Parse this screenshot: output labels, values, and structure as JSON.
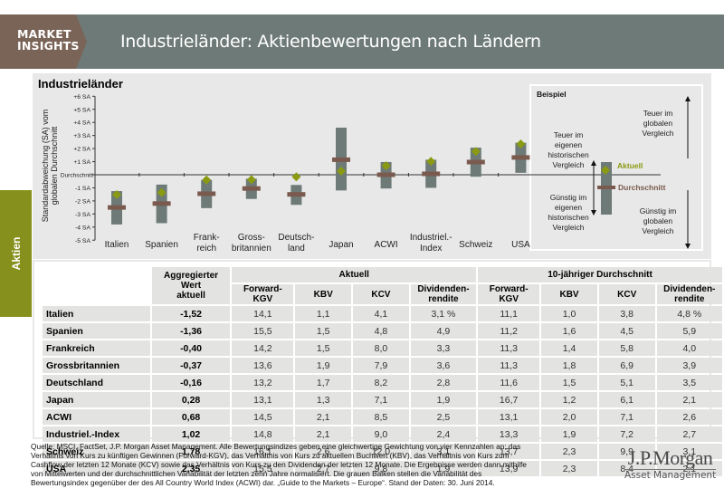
{
  "header": {
    "brand_line1": "MARKET",
    "brand_line2": "INSIGHTS",
    "title": "Industrieländer: Aktienbewertungen nach Ländern"
  },
  "side_tab": {
    "label": "Aktien"
  },
  "colors": {
    "header_bg": "#6e7a77",
    "brand_bg": "#7a6357",
    "side_tab": "#86901c",
    "range_bar": "#6d7a77",
    "average_marker": "#7a5a4e",
    "current_marker": "#8a9a12"
  },
  "chart_data": {
    "type": "range-marker",
    "title": "Industrieländer",
    "ylabel": "Standardabweichung (SA) vom globalen Durchschnitt",
    "ylim": [
      -5,
      6
    ],
    "yticks": [
      {
        "value": 6,
        "label": "+6 SA"
      },
      {
        "value": 5,
        "label": "+5 SA"
      },
      {
        "value": 4,
        "label": "+4 SA"
      },
      {
        "value": 3,
        "label": "+3 SA"
      },
      {
        "value": 2,
        "label": "+2 SA"
      },
      {
        "value": 1,
        "label": "+1 SA"
      },
      {
        "value": 0,
        "label": "Durchschnitt"
      },
      {
        "value": -1,
        "label": "-1 SA"
      },
      {
        "value": -2,
        "label": "-2 SA"
      },
      {
        "value": -3,
        "label": "-3 SA"
      },
      {
        "value": -4,
        "label": "-4 SA"
      },
      {
        "value": -5,
        "label": "-5 SA"
      }
    ],
    "categories": [
      {
        "l1": "Italien",
        "l2": ""
      },
      {
        "l1": "Spanien",
        "l2": ""
      },
      {
        "l1": "Frank-",
        "l2": "reich"
      },
      {
        "l1": "Gross-",
        "l2": "britannien"
      },
      {
        "l1": "Deutsch-",
        "l2": "land"
      },
      {
        "l1": "Japan",
        "l2": ""
      },
      {
        "l1": "ACWI",
        "l2": ""
      },
      {
        "l1": "Industriel.-",
        "l2": "Index"
      },
      {
        "l1": "Schweiz",
        "l2": ""
      },
      {
        "l1": "USA",
        "l2": ""
      }
    ],
    "series": [
      {
        "name": "Range (low)",
        "values": [
          -3.8,
          -3.7,
          -2.55,
          -1.85,
          -2.3,
          -1.2,
          -1.05,
          -1.0,
          -0.15,
          0.15
        ]
      },
      {
        "name": "Range (high)",
        "values": [
          -1.25,
          -0.75,
          -0.4,
          -0.3,
          -0.78,
          3.6,
          0.97,
          1.15,
          2.07,
          2.45
        ]
      },
      {
        "name": "Durchschnitt",
        "values": [
          -2.5,
          -2.2,
          -1.45,
          -1.05,
          -1.5,
          1.15,
          0.0,
          0.07,
          0.97,
          1.32
        ]
      },
      {
        "name": "Aktuell",
        "values": [
          -1.52,
          -1.36,
          -0.4,
          -0.37,
          -0.16,
          0.28,
          0.68,
          1.02,
          1.78,
          2.35
        ]
      }
    ],
    "legend_example": {
      "title": "Beispiel",
      "expensive_global": [
        "Teuer im",
        "globalen",
        "Vergleich"
      ],
      "expensive_hist": [
        "Teuer im",
        "eigenen",
        "historischen",
        "Vergleich"
      ],
      "cheap_hist": [
        "Günstig im",
        "eigenen",
        "historischen",
        "Vergleich"
      ],
      "cheap_global": [
        "Günstig im",
        "globalen",
        "Vergleich"
      ],
      "current_label": "Aktuell",
      "average_label": "Durchschnitt"
    }
  },
  "table": {
    "agg_header_l1": "Aggregierter Wert",
    "agg_header_l2": "aktuell",
    "group_current": "Aktuell",
    "group_avg": "10-jähriger Durchschnitt",
    "cols": [
      {
        "l1": "Forward-KGV",
        "l2": ""
      },
      {
        "l1": "KBV",
        "l2": ""
      },
      {
        "l1": "KCV",
        "l2": ""
      },
      {
        "l1": "Dividenden-",
        "l2": "rendite"
      },
      {
        "l1": "Forward-KGV",
        "l2": ""
      },
      {
        "l1": "KBV",
        "l2": ""
      },
      {
        "l1": "KCV",
        "l2": ""
      },
      {
        "l1": "Dividenden-",
        "l2": "rendite"
      }
    ],
    "rows": [
      {
        "country": "Italien",
        "agg": "-1,52",
        "vals": [
          "14,1",
          "1,1",
          "4,1",
          "3,1 %",
          "11,1",
          "1,0",
          "3,8",
          "4,8 %"
        ]
      },
      {
        "country": "Spanien",
        "agg": "-1,36",
        "vals": [
          "15,5",
          "1,5",
          "4,8",
          "4,9",
          "11,2",
          "1,6",
          "4,5",
          "5,9"
        ]
      },
      {
        "country": "Frankreich",
        "agg": "-0,40",
        "vals": [
          "14,2",
          "1,5",
          "8,0",
          "3,3",
          "11,3",
          "1,4",
          "5,8",
          "4,0"
        ]
      },
      {
        "country": "Grossbritannien",
        "agg": "-0,37",
        "vals": [
          "13,6",
          "1,9",
          "7,9",
          "3,6",
          "11,3",
          "1,8",
          "6,9",
          "3,9"
        ]
      },
      {
        "country": "Deutschland",
        "agg": "-0,16",
        "vals": [
          "13,2",
          "1,7",
          "8,2",
          "2,8",
          "11,6",
          "1,5",
          "5,1",
          "3,5"
        ]
      },
      {
        "country": "Japan",
        "agg": "0,28",
        "vals": [
          "13,1",
          "1,3",
          "7,1",
          "1,9",
          "16,7",
          "1,2",
          "6,1",
          "2,1"
        ]
      },
      {
        "country": "ACWI",
        "agg": "0,68",
        "vals": [
          "14,5",
          "2,1",
          "8,5",
          "2,5",
          "13,1",
          "2,0",
          "7,1",
          "2,6"
        ]
      },
      {
        "country": "Industriel.-Index",
        "agg": "1,02",
        "vals": [
          "14,8",
          "2,1",
          "9,0",
          "2,4",
          "13,3",
          "1,9",
          "7,2",
          "2,7"
        ]
      },
      {
        "country": "Schweiz",
        "agg": "1,78",
        "vals": [
          "16,1",
          "2,6",
          "12,0",
          "3,1",
          "13,7",
          "2,3",
          "9,9",
          "3,1"
        ]
      },
      {
        "country": "USA",
        "agg": "2,35",
        "vals": [
          "15,5",
          "2,7",
          "9,8",
          "1,9",
          "13,9",
          "2,3",
          "8,4",
          "2,1"
        ]
      }
    ]
  },
  "footnote": "Quelle: MSCI, FactSet, J.P. Morgan Asset Management. Alle Bewertungsindizes geben eine gleichwertige Gewichtung von vier Kennzahlen an: das Verhältnis von Kurs zu künftigen Gewinnen (Forward-KGV), das Verhältnis von Kurs zu aktuellem Buchwert (KBV), das Verhältnis von Kurs zum Cashflow der letzten 12 Monate (KCV) sowie das Verhältnis von Kurs zu den Dividenden der letzten 12 Monate. Die Ergebnisse werden dann mithilfe von Mittelwerten und der durchschnittlichen Variabilität der letzten zehn Jahre normalisiert. Die grauen Balken stellen die Variabilität des Bewertungsindex gegenüber der des All Country World Index (ACWI) dar. „Guide to the Markets – Europe“. Stand der Daten: 30. Juni 2014.",
  "logo": {
    "name": "J.P.Morgan",
    "sub": "Asset Management"
  }
}
